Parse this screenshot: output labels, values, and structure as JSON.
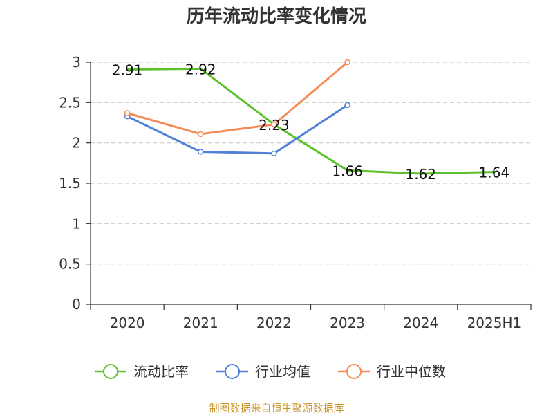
{
  "chart_data": {
    "type": "line",
    "title": "历年流动比率变化情况",
    "categories": [
      "2020",
      "2021",
      "2022",
      "2023",
      "2024",
      "2025H1"
    ],
    "ylim": [
      0,
      3
    ],
    "yticks": [
      "0",
      "0.5",
      "1",
      "1.5",
      "2",
      "2.5",
      "3"
    ],
    "ytick_values": [
      0,
      0.5,
      1,
      1.5,
      2,
      2.5,
      3
    ],
    "grid": true,
    "legend_position": "bottom",
    "series": [
      {
        "name": "流动比率",
        "color": "#5cc12a",
        "values": [
          2.91,
          2.92,
          2.23,
          1.66,
          1.62,
          1.64
        ],
        "labels": [
          "2.91",
          "2.92",
          "2.23",
          "1.66",
          "1.62",
          "1.64"
        ],
        "show_markers": false,
        "show_labels": true
      },
      {
        "name": "行业均值",
        "color": "#4f7fd6",
        "values": [
          2.33,
          1.89,
          1.87,
          2.47,
          null,
          null
        ],
        "show_markers": true,
        "show_labels": false
      },
      {
        "name": "行业中位数",
        "color": "#f58c57",
        "values": [
          2.37,
          2.11,
          2.23,
          3.0,
          null,
          null
        ],
        "show_markers": true,
        "show_labels": false
      }
    ]
  },
  "source": "制图数据来自恒生聚源数据库"
}
